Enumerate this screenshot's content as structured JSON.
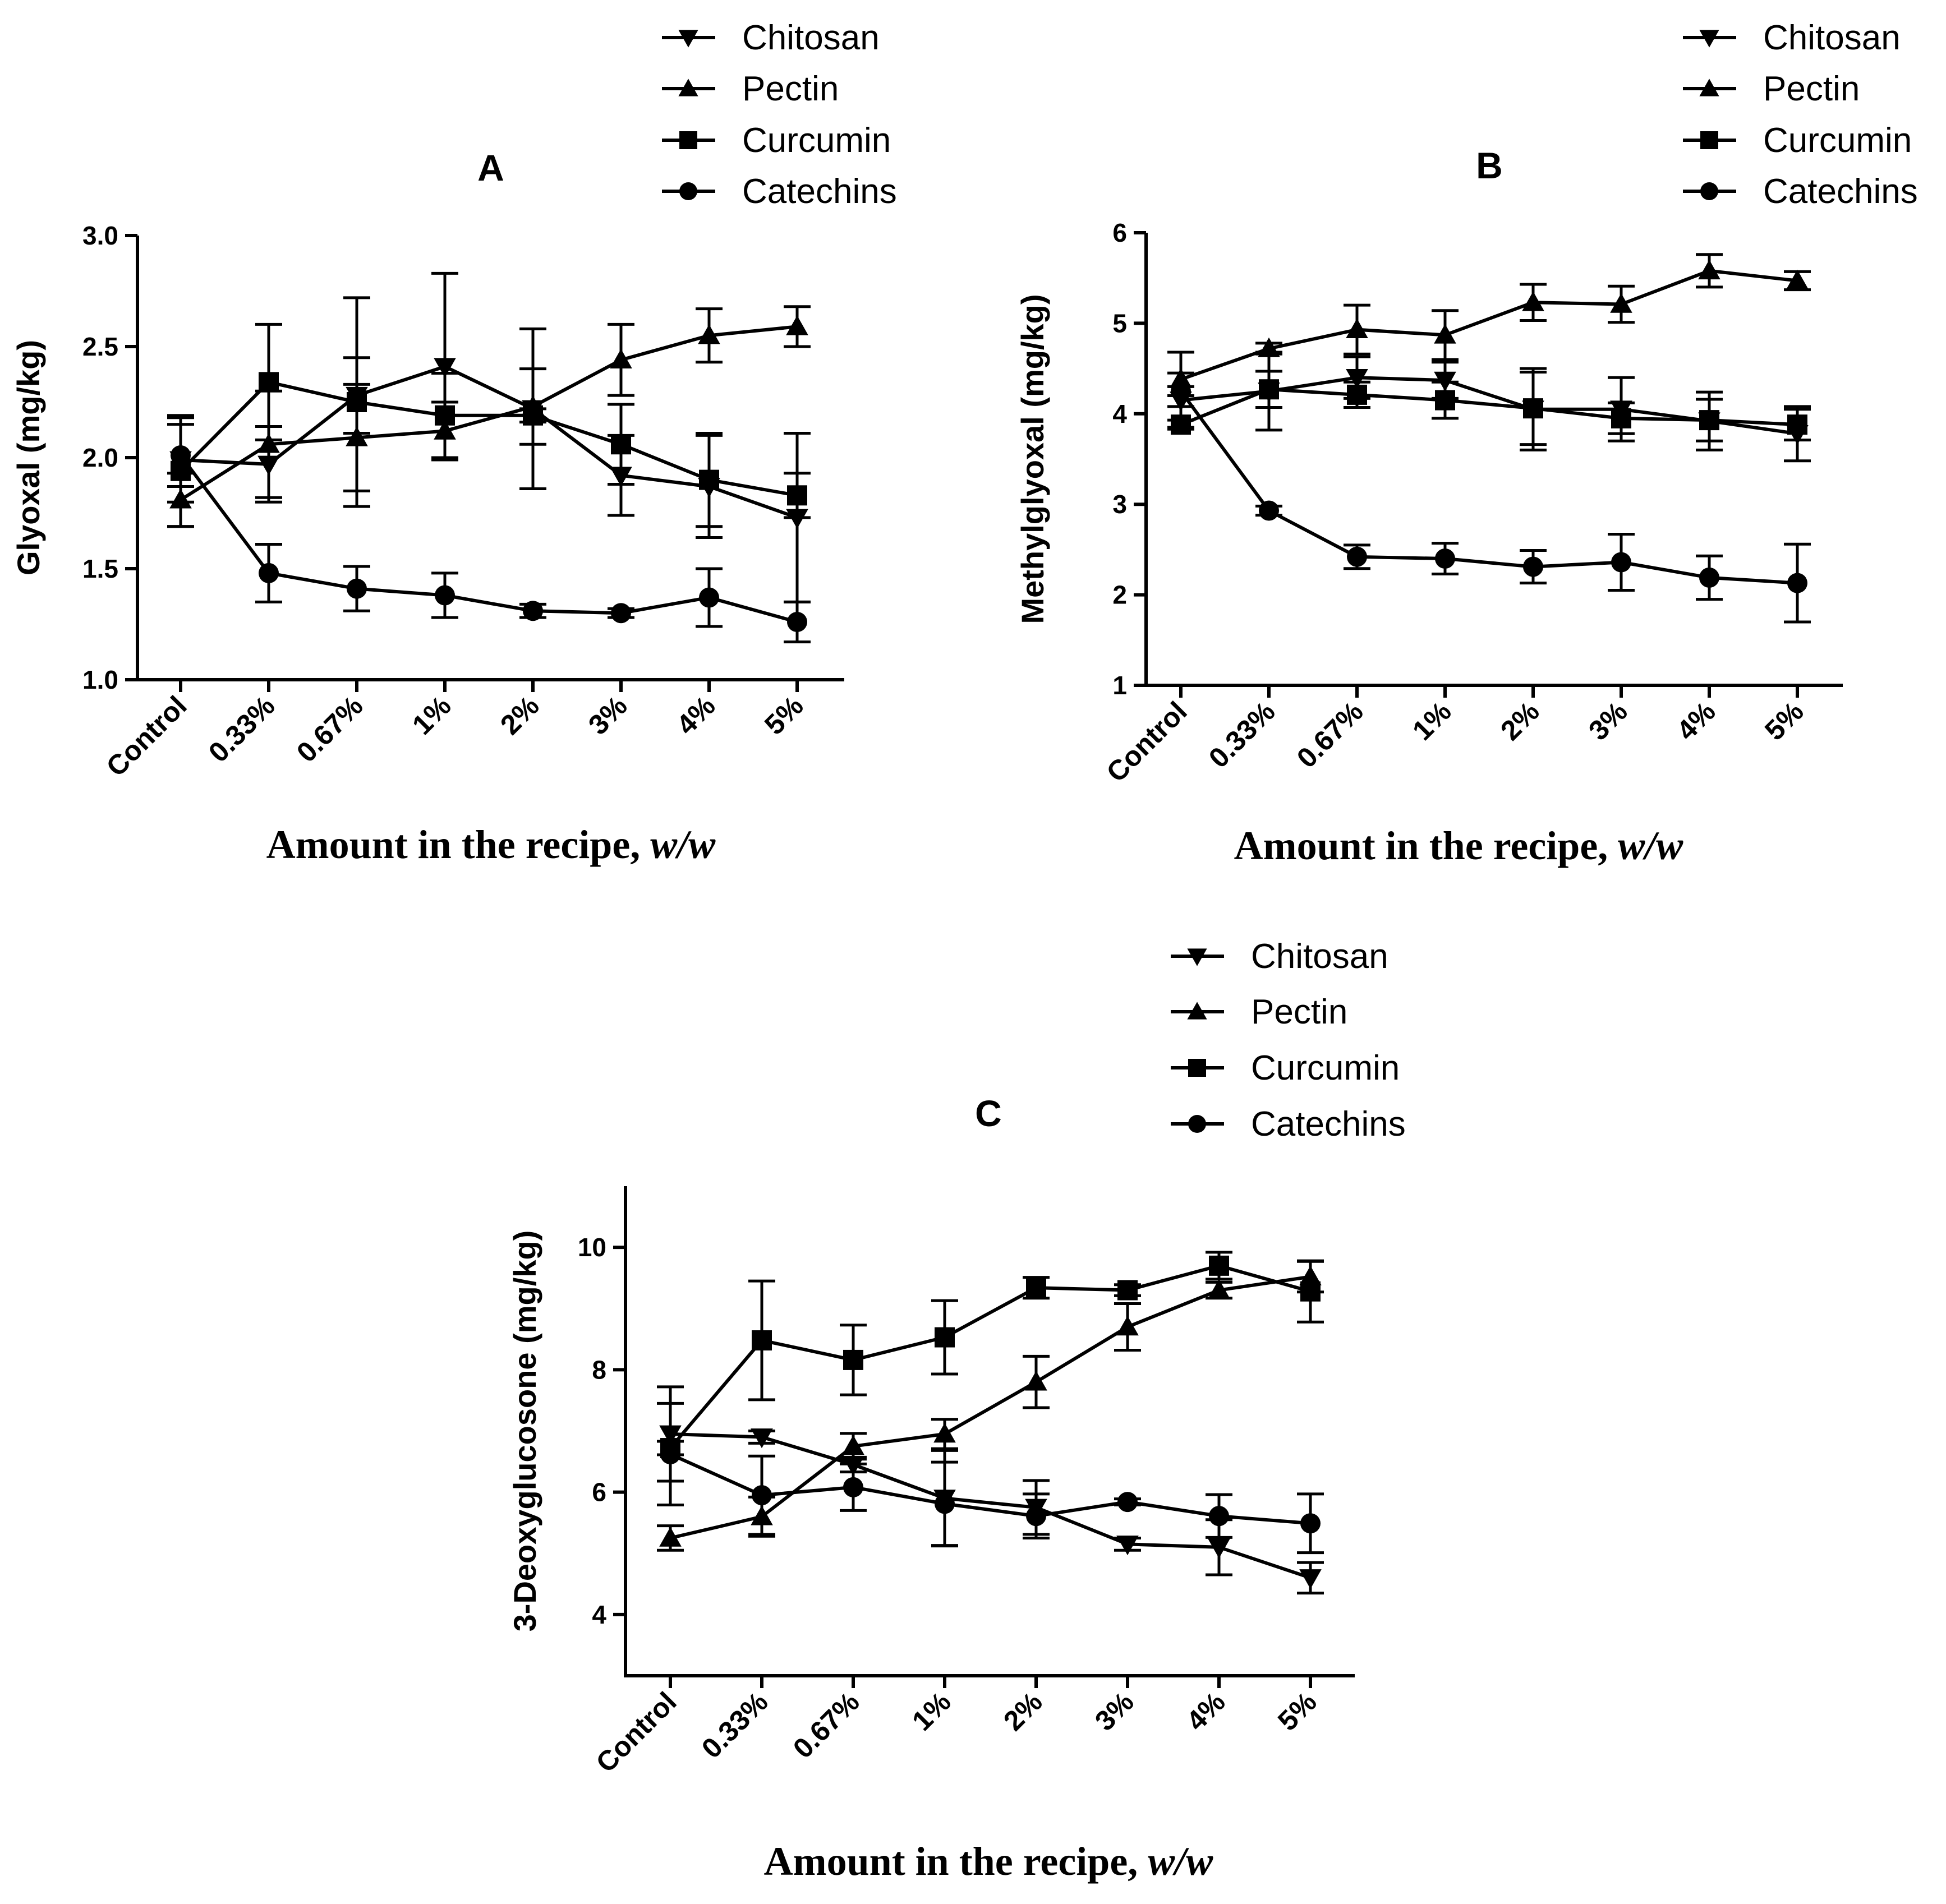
{
  "chart_data": [
    {
      "type": "line",
      "panel": "A",
      "title": "A",
      "xlabel": "Amount in the recipe,",
      "xlabel_italic": "w/w",
      "ylabel": "Glyoxal (mg/kg)",
      "ylim": [
        1.0,
        3.0
      ],
      "yticks": [
        "1.0",
        "1.5",
        "2.0",
        "2.5",
        "3.0"
      ],
      "ytick_values": [
        1.0,
        1.5,
        2.0,
        2.5,
        3.0
      ],
      "categories": [
        "Control",
        "0.33%",
        "0.67%",
        "1%",
        "2%",
        "3%",
        "4%",
        "5%"
      ],
      "legend": [
        "Chitosan",
        "Pectin",
        "Curcumin",
        "Catechins"
      ],
      "legend_position": "top-right",
      "series": [
        {
          "name": "Chitosan",
          "marker": "triangle-down",
          "values": [
            1.99,
            1.97,
            2.28,
            2.41,
            2.22,
            1.92,
            1.87,
            1.73
          ],
          "errors": [
            0.19,
            0.17,
            0.17,
            0.42,
            0.36,
            0.18,
            0.23,
            0.38
          ]
        },
        {
          "name": "Pectin",
          "marker": "triangle-up",
          "values": [
            1.81,
            2.06,
            2.09,
            2.12,
            2.23,
            2.44,
            2.55,
            2.59
          ],
          "errors": [
            0.12,
            0.24,
            0.24,
            0.13,
            0.17,
            0.16,
            0.12,
            0.09
          ]
        },
        {
          "name": "Curcumin",
          "marker": "square",
          "values": [
            1.94,
            2.34,
            2.25,
            2.19,
            2.19,
            2.06,
            1.9,
            1.83
          ],
          "errors": [
            0.25,
            0.26,
            0.47,
            0.19,
            0.03,
            0.18,
            0.21,
            0.1
          ]
        },
        {
          "name": "Catechins",
          "marker": "circle",
          "values": [
            2.01,
            1.48,
            1.41,
            1.38,
            1.31,
            1.3,
            1.37,
            1.26
          ],
          "errors": [
            0.14,
            0.13,
            0.1,
            0.1,
            0.03,
            0.02,
            0.13,
            0.09
          ]
        }
      ]
    },
    {
      "type": "line",
      "panel": "B",
      "title": "B",
      "xlabel": "Amount in the recipe,",
      "xlabel_italic": "w/w",
      "ylabel": "Methylglyoxal (mg/kg)",
      "ylim": [
        1,
        6
      ],
      "yticks": [
        "1",
        "2",
        "3",
        "4",
        "5",
        "6"
      ],
      "ytick_values": [
        1,
        2,
        3,
        4,
        5,
        6
      ],
      "categories": [
        "Control",
        "0.33%",
        "0.67%",
        "1%",
        "2%",
        "3%",
        "4%",
        "5%"
      ],
      "legend": [
        "Chitosan",
        "Pectin",
        "Curcumin",
        "Catechins"
      ],
      "legend_position": "top-right",
      "series": [
        {
          "name": "Chitosan",
          "marker": "triangle-down",
          "values": [
            4.15,
            4.25,
            4.4,
            4.37,
            4.05,
            4.05,
            3.92,
            3.78
          ],
          "errors": [
            0.3,
            0.43,
            0.23,
            0.2,
            0.45,
            0.35,
            0.32,
            0.3
          ]
        },
        {
          "name": "Pectin",
          "marker": "triangle-up",
          "values": [
            4.38,
            4.72,
            4.93,
            4.87,
            5.23,
            5.21,
            5.58,
            5.47
          ],
          "errors": [
            0.3,
            0.06,
            0.27,
            0.27,
            0.2,
            0.2,
            0.18,
            0.1
          ]
        },
        {
          "name": "Curcumin",
          "marker": "square",
          "values": [
            3.88,
            4.27,
            4.21,
            4.15,
            4.06,
            3.95,
            3.93,
            3.88
          ],
          "errors": [
            0.05,
            0.2,
            0.14,
            0.2,
            0.4,
            0.17,
            0.23,
            0.17
          ]
        },
        {
          "name": "Catechins",
          "marker": "circle",
          "values": [
            4.25,
            2.93,
            2.42,
            2.4,
            2.31,
            2.36,
            2.19,
            2.13
          ],
          "errors": [
            0.05,
            0.05,
            0.13,
            0.17,
            0.18,
            0.31,
            0.24,
            0.43
          ]
        }
      ]
    },
    {
      "type": "line",
      "panel": "C",
      "title": "C",
      "xlabel": "Amount in the recipe,",
      "xlabel_italic": "w/w",
      "ylabel": "3-Deoxyglucosone (mg/kg)",
      "ylim": [
        3,
        11
      ],
      "yticks": [
        "4",
        "6",
        "8",
        "10"
      ],
      "ytick_values": [
        4,
        6,
        8,
        10
      ],
      "categories": [
        "Control",
        "0.33%",
        "0.67%",
        "1%",
        "2%",
        "3%",
        "4%",
        "5%"
      ],
      "legend": [
        "Chitosan",
        "Pectin",
        "Curcumin",
        "Catechins"
      ],
      "legend_position": "top-right",
      "series": [
        {
          "name": "Chitosan",
          "marker": "triangle-down",
          "values": [
            6.95,
            6.9,
            6.45,
            5.9,
            5.75,
            5.15,
            5.1,
            4.6
          ],
          "errors": [
            0.77,
            0.1,
            0.12,
            0.78,
            0.44,
            0.1,
            0.45,
            0.25
          ]
        },
        {
          "name": "Pectin",
          "marker": "triangle-up",
          "values": [
            5.25,
            5.6,
            6.75,
            6.95,
            7.8,
            8.7,
            9.3,
            9.52
          ],
          "errors": [
            0.2,
            0.32,
            0.21,
            0.24,
            0.42,
            0.38,
            0.13,
            0.25
          ]
        },
        {
          "name": "Curcumin",
          "marker": "square",
          "values": [
            6.72,
            8.48,
            8.16,
            8.53,
            9.34,
            9.3,
            9.7,
            9.28
          ],
          "errors": [
            0.11,
            0.97,
            0.57,
            0.6,
            0.17,
            0.09,
            0.22,
            0.5
          ]
        },
        {
          "name": "Catechins",
          "marker": "circle",
          "values": [
            6.62,
            5.95,
            6.08,
            5.81,
            5.61,
            5.84,
            5.61,
            5.49
          ],
          "errors": [
            0.83,
            0.64,
            0.38,
            0.68,
            0.36,
            0.05,
            0.35,
            0.48
          ]
        }
      ]
    }
  ]
}
